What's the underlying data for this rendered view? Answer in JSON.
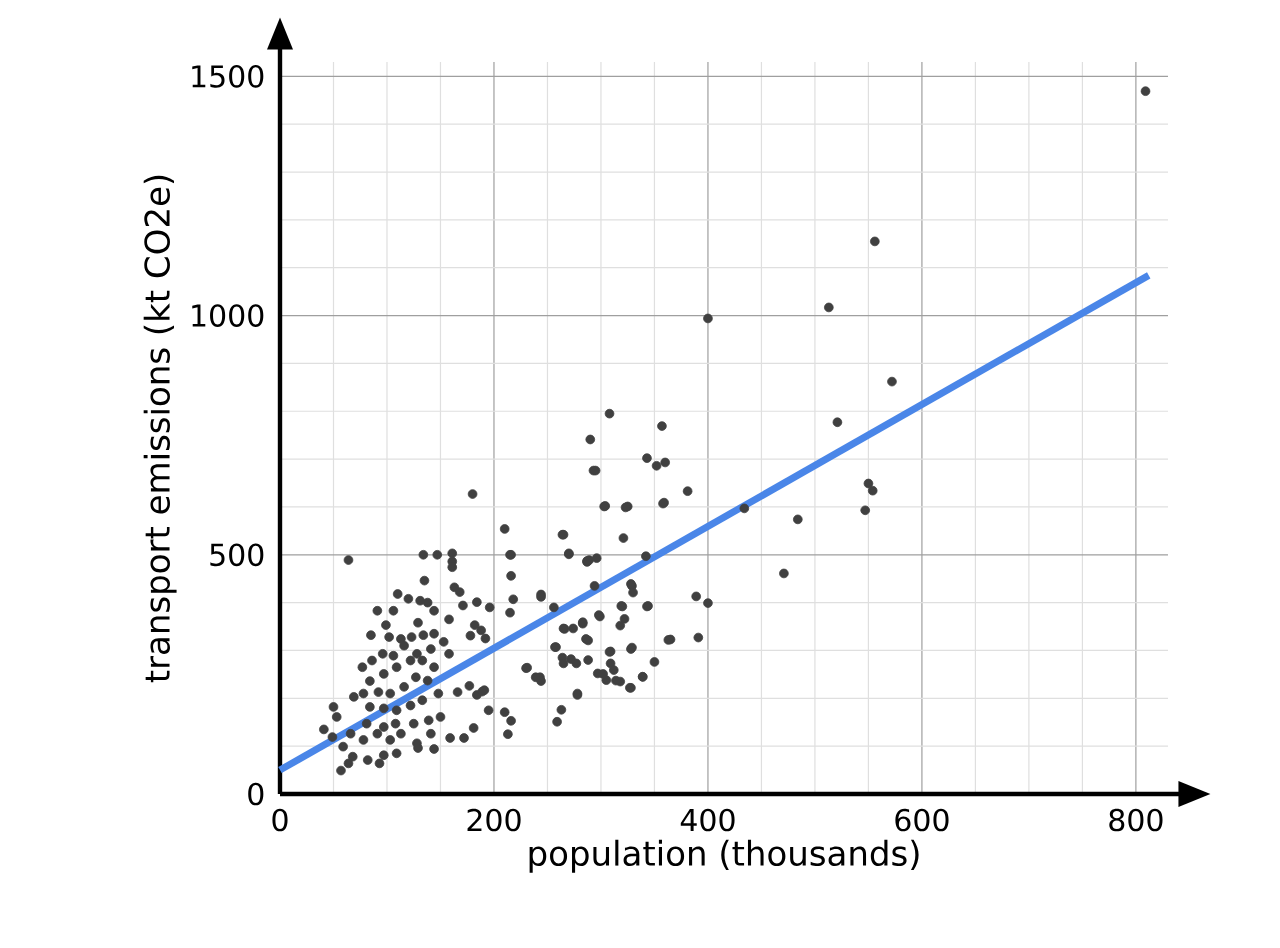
{
  "chart_data": {
    "type": "scatter",
    "xlabel": "population (thousands)",
    "ylabel": "transport emissions (kt CO2e)",
    "xlim": [
      0,
      830
    ],
    "ylim": [
      0,
      1530
    ],
    "xticks": [
      0,
      {
        "value": 50,
        "label": null
      },
      {
        "value": 100,
        "label": null
      },
      {
        "value": 150,
        "label": null
      },
      200,
      {
        "value": 250,
        "label": null
      },
      {
        "value": 300,
        "label": null
      },
      {
        "value": 350,
        "label": null
      },
      400,
      {
        "value": 450,
        "label": null
      },
      {
        "value": 500,
        "label": null
      },
      {
        "value": 550,
        "label": null
      },
      600,
      {
        "value": 650,
        "label": null
      },
      {
        "value": 700,
        "label": null
      },
      {
        "value": 750,
        "label": null
      },
      800
    ],
    "yticks": [
      0,
      {
        "value": 100,
        "label": null
      },
      {
        "value": 200,
        "label": null
      },
      {
        "value": 300,
        "label": null
      },
      {
        "value": 400,
        "label": null
      },
      500,
      {
        "value": 600,
        "label": null
      },
      {
        "value": 700,
        "label": null
      },
      {
        "value": 800,
        "label": null
      },
      {
        "value": 900,
        "label": null
      },
      1000,
      {
        "value": 1100,
        "label": null
      },
      {
        "value": 1200,
        "label": null
      },
      {
        "value": 1300,
        "label": null
      },
      {
        "value": 1400,
        "label": null
      },
      1500
    ],
    "grid": true,
    "marker": "circle",
    "series": [
      {
        "color": "#404040",
        "x": [
          809,
          556,
          513,
          572,
          521,
          550,
          554,
          547,
          484,
          471,
          400,
          434,
          308,
          357,
          290,
          343,
          360,
          352,
          295,
          381,
          304,
          325,
          359,
          180,
          210,
          265,
          321,
          216,
          270,
          289,
          296,
          287,
          342,
          216,
          389,
          400,
          329,
          330,
          294,
          244,
          343,
          320,
          298,
          318,
          322,
          283,
          274,
          266,
          288,
          257,
          309,
          329,
          365,
          391,
          350,
          309,
          312,
          288,
          277,
          264,
          265,
          297,
          305,
          318,
          328,
          339,
          278,
          243,
          230,
          64,
          134,
          147,
          161,
          161,
          161,
          135,
          110,
          120,
          131,
          138,
          163,
          168,
          91,
          106,
          99,
          129,
          144,
          158,
          171,
          184,
          196,
          182,
          188,
          178,
          192,
          215,
          218,
          244,
          215,
          85,
          102,
          113,
          123,
          134,
          144,
          153,
          141,
          128,
          116,
          106,
          96,
          86,
          77,
          84,
          97,
          109,
          122,
          133,
          144,
          158,
          138,
          127,
          116,
          103,
          92,
          78,
          69,
          84,
          97,
          109,
          122,
          133,
          148,
          166,
          177,
          184,
          191,
          150,
          139,
          125,
          108,
          97,
          81,
          53,
          41,
          50,
          49,
          59,
          66,
          78,
          91,
          103,
          113,
          128,
          141,
          144,
          129,
          109,
          97,
          82,
          68,
          57,
          64,
          93,
          159,
          172,
          181,
          189,
          195,
          210,
          216,
          213,
          231,
          239,
          244,
          258,
          263,
          259,
          278,
          264,
          270,
          287,
          303,
          323,
          293,
          358,
          328,
          299,
          319,
          344,
          308,
          328,
          339,
          302,
          314,
          327,
          363,
          272,
          286,
          283,
          265,
          256
        ],
        "values": [
          1469,
          1155,
          1017,
          862,
          777,
          649,
          634,
          593,
          574,
          461,
          994,
          597,
          795,
          769,
          741,
          702,
          693,
          686,
          676,
          633,
          602,
          601,
          609,
          627,
          554,
          542,
          535,
          500,
          503,
          489,
          493,
          485,
          497,
          456,
          413,
          399,
          435,
          421,
          435,
          417,
          392,
          392,
          374,
          352,
          366,
          359,
          346,
          345,
          321,
          307,
          298,
          306,
          323,
          327,
          276,
          273,
          259,
          280,
          273,
          285,
          273,
          252,
          238,
          235,
          222,
          245,
          210,
          244,
          263,
          489,
          500,
          500,
          503,
          486,
          474,
          446,
          418,
          408,
          404,
          400,
          432,
          422,
          383,
          383,
          353,
          358,
          383,
          365,
          394,
          401,
          390,
          353,
          342,
          331,
          325,
          379,
          407,
          412,
          500,
          332,
          328,
          324,
          328,
          332,
          335,
          318,
          303,
          293,
          310,
          289,
          293,
          279,
          265,
          236,
          251,
          265,
          279,
          279,
          265,
          293,
          237,
          244,
          224,
          210,
          213,
          210,
          203,
          182,
          179,
          175,
          185,
          196,
          210,
          213,
          226,
          207,
          217,
          161,
          154,
          147,
          147,
          140,
          147,
          161,
          135,
          182,
          119,
          99,
          126,
          113,
          126,
          113,
          126,
          106,
          126,
          94,
          96,
          85,
          81,
          71,
          78,
          49,
          64,
          64,
          117,
          117,
          138,
          214,
          175,
          171,
          153,
          125,
          264,
          244,
          236,
          307,
          176,
          151,
          207,
          542,
          501,
          487,
          601,
          599,
          676,
          607,
          439,
          371,
          393,
          393,
          297,
          303,
          245,
          251,
          237,
          222,
          322,
          282,
          324,
          356,
          346,
          390
        ]
      },
      {
        "type": "line",
        "marker": "none",
        "color": "#4a86e8",
        "x": [
          0,
          812
        ],
        "values": [
          50,
          1084
        ]
      }
    ]
  }
}
